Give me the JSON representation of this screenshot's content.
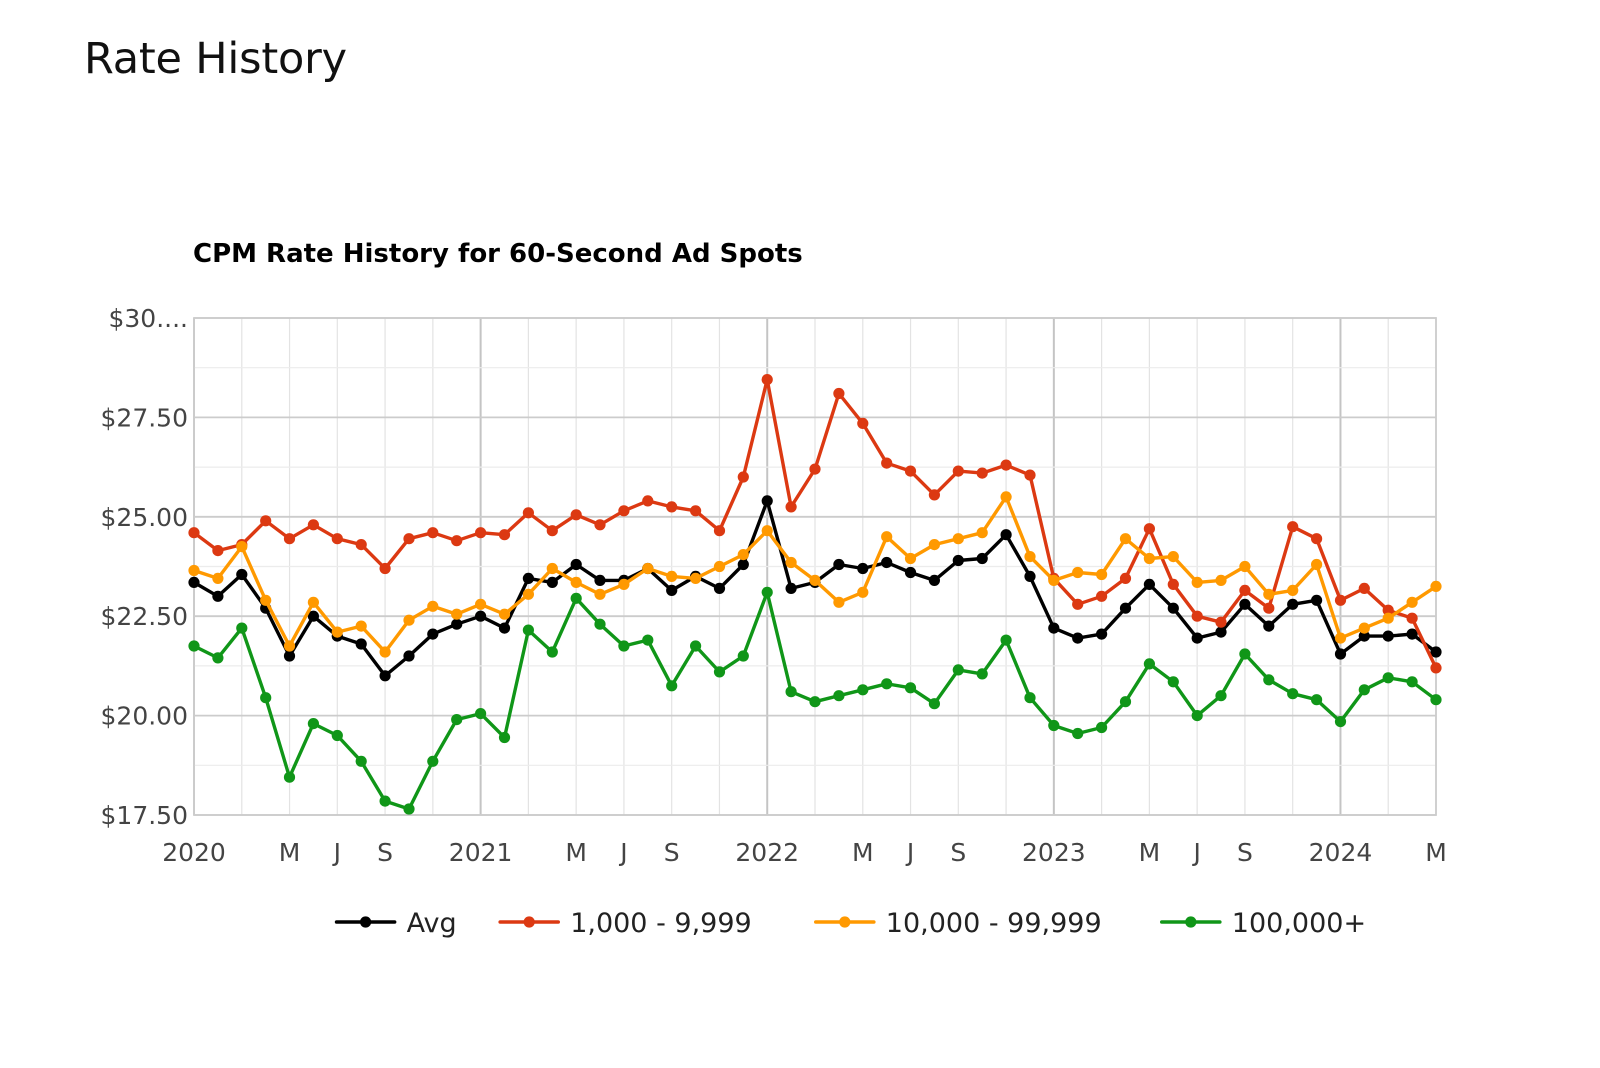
{
  "page": {
    "title": "Rate History"
  },
  "chart_data": {
    "type": "line",
    "title": "CPM Rate History for 60-Second Ad Spots",
    "xlabel": "",
    "ylabel": "",
    "ylim": [
      17.5,
      30
    ],
    "y_ticks": [
      17.5,
      20,
      22.5,
      25,
      27.5,
      30
    ],
    "y_tick_labels": [
      "$17.50",
      "$20.00",
      "$22.50",
      "$25.00",
      "$27.50",
      "$30...."
    ],
    "x_start": "2020-01",
    "x_end": "2024-05",
    "x_tick_labels": [
      {
        "month": "2020-01",
        "label": "2020"
      },
      {
        "month": "2020-05",
        "label": "M"
      },
      {
        "month": "2020-07",
        "label": "J"
      },
      {
        "month": "2020-09",
        "label": "S"
      },
      {
        "month": "2021-01",
        "label": "2021"
      },
      {
        "month": "2021-05",
        "label": "M"
      },
      {
        "month": "2021-07",
        "label": "J"
      },
      {
        "month": "2021-09",
        "label": "S"
      },
      {
        "month": "2022-01",
        "label": "2022"
      },
      {
        "month": "2022-05",
        "label": "M"
      },
      {
        "month": "2022-07",
        "label": "J"
      },
      {
        "month": "2022-09",
        "label": "S"
      },
      {
        "month": "2023-01",
        "label": "2023"
      },
      {
        "month": "2023-05",
        "label": "M"
      },
      {
        "month": "2023-07",
        "label": "J"
      },
      {
        "month": "2023-09",
        "label": "S"
      },
      {
        "month": "2024-01",
        "label": "2024"
      },
      {
        "month": "2024-05",
        "label": "M"
      }
    ],
    "grid": true,
    "legend_position": "bottom",
    "series": [
      {
        "name": "Avg",
        "color": "#000000",
        "values": [
          23.35,
          23.0,
          23.55,
          22.7,
          21.5,
          22.5,
          22.0,
          21.8,
          21.0,
          21.5,
          22.05,
          22.3,
          22.5,
          22.2,
          23.45,
          23.35,
          23.8,
          23.4,
          23.4,
          23.7,
          23.15,
          23.5,
          23.2,
          23.8,
          25.4,
          23.2,
          23.35,
          23.8,
          23.7,
          23.85,
          23.6,
          23.4,
          23.9,
          23.95,
          24.55,
          23.5,
          22.2,
          21.95,
          22.05,
          22.7,
          23.3,
          22.7,
          21.95,
          22.1,
          22.8,
          22.25,
          22.8,
          22.9,
          21.55,
          22.0,
          22.0,
          22.05,
          21.6
        ]
      },
      {
        "name": "1,000 - 9,999",
        "color": "#dc3912",
        "values": [
          24.6,
          24.15,
          24.3,
          24.9,
          24.45,
          24.8,
          24.45,
          24.3,
          23.7,
          24.45,
          24.6,
          24.4,
          24.6,
          24.55,
          25.1,
          24.65,
          25.05,
          24.8,
          25.15,
          25.4,
          25.25,
          25.15,
          24.65,
          26.0,
          28.45,
          25.25,
          26.2,
          28.1,
          27.35,
          26.35,
          26.15,
          25.55,
          26.15,
          26.1,
          26.3,
          26.05,
          23.45,
          22.8,
          23.0,
          23.45,
          24.7,
          23.3,
          22.5,
          22.35,
          23.15,
          22.7,
          24.75,
          24.45,
          22.9,
          23.2,
          22.65,
          22.45,
          21.2
        ]
      },
      {
        "name": "10,000 - 99,999",
        "color": "#ff9900",
        "values": [
          23.65,
          23.45,
          24.25,
          22.9,
          21.75,
          22.85,
          22.1,
          22.25,
          21.6,
          22.4,
          22.75,
          22.55,
          22.8,
          22.55,
          23.05,
          23.7,
          23.35,
          23.05,
          23.3,
          23.7,
          23.5,
          23.45,
          23.75,
          24.05,
          24.65,
          23.85,
          23.4,
          22.85,
          23.1,
          24.5,
          23.95,
          24.3,
          24.45,
          24.6,
          25.5,
          24.0,
          23.4,
          23.6,
          23.55,
          24.45,
          23.95,
          24.0,
          23.35,
          23.4,
          23.75,
          23.05,
          23.15,
          23.8,
          21.95,
          22.2,
          22.45,
          22.85,
          23.25
        ]
      },
      {
        "name": "100,000+",
        "color": "#109618",
        "values": [
          21.75,
          21.45,
          22.2,
          20.45,
          18.45,
          19.8,
          19.5,
          18.85,
          17.85,
          17.65,
          18.85,
          19.9,
          20.05,
          19.45,
          22.15,
          21.6,
          22.95,
          22.3,
          21.75,
          21.9,
          20.75,
          21.75,
          21.1,
          21.5,
          23.1,
          20.6,
          20.35,
          20.5,
          20.65,
          20.8,
          20.7,
          20.3,
          21.15,
          21.05,
          21.9,
          20.45,
          19.75,
          19.55,
          19.7,
          20.35,
          21.3,
          20.85,
          20.0,
          20.5,
          21.55,
          20.9,
          20.55,
          20.4,
          19.85,
          20.65,
          20.95,
          20.85,
          20.4
        ]
      }
    ]
  }
}
